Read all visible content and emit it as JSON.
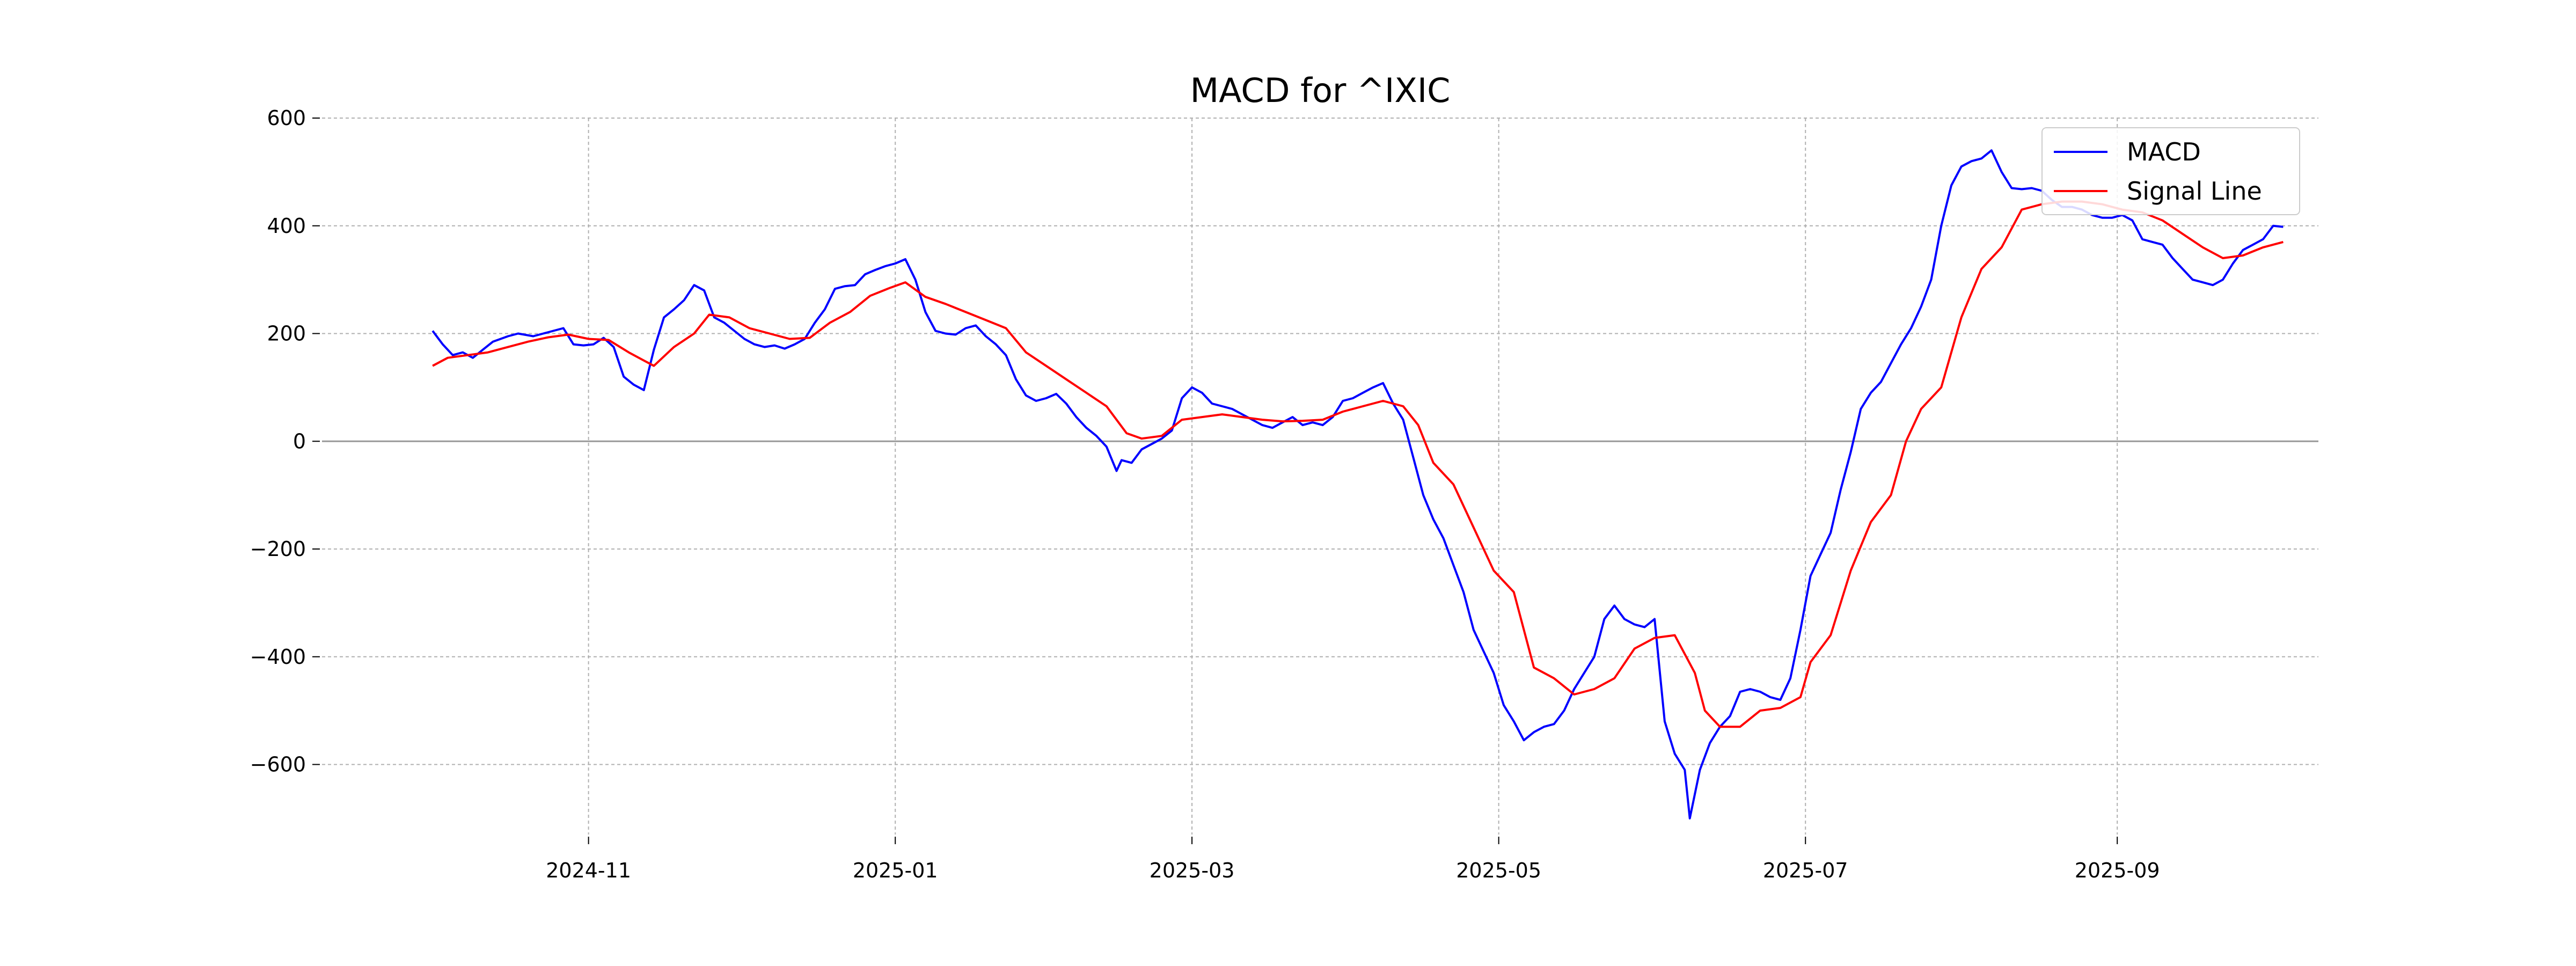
{
  "chart_data": {
    "type": "line",
    "title": "MACD for ^IXIC",
    "xlabel": "",
    "ylabel": "",
    "x_axis": "date",
    "xlim": [
      "2024-09-09",
      "2025-10-11"
    ],
    "ylim": [
      -730,
      600
    ],
    "yticks": [
      600,
      400,
      200,
      0,
      -200,
      -400,
      -600
    ],
    "ytick_labels": [
      "600",
      "400",
      "200",
      "0",
      "−200",
      "−400",
      "−600"
    ],
    "xticks": [
      "2024-11-01",
      "2025-01-01",
      "2025-03-01",
      "2025-05-01",
      "2025-07-01",
      "2025-09-01"
    ],
    "xtick_labels": [
      "2024-11",
      "2025-01",
      "2025-03",
      "2025-05",
      "2025-07",
      "2025-09"
    ],
    "grid": true,
    "zero_line": 0,
    "legend": {
      "position": "top-right"
    },
    "series": [
      {
        "name": "MACD",
        "color": "#0000ff",
        "points": [
          [
            "2024-10-01",
            205
          ],
          [
            "2024-10-03",
            180
          ],
          [
            "2024-10-05",
            160
          ],
          [
            "2024-10-07",
            165
          ],
          [
            "2024-10-09",
            155
          ],
          [
            "2024-10-11",
            170
          ],
          [
            "2024-10-13",
            185
          ],
          [
            "2024-10-16",
            195
          ],
          [
            "2024-10-18",
            200
          ],
          [
            "2024-10-21",
            195
          ],
          [
            "2024-10-23",
            200
          ],
          [
            "2024-10-25",
            205
          ],
          [
            "2024-10-27",
            210
          ],
          [
            "2024-10-29",
            180
          ],
          [
            "2024-10-31",
            178
          ],
          [
            "2024-11-02",
            180
          ],
          [
            "2024-11-04",
            192
          ],
          [
            "2024-11-06",
            175
          ],
          [
            "2024-11-08",
            120
          ],
          [
            "2024-11-10",
            105
          ],
          [
            "2024-11-12",
            95
          ],
          [
            "2024-11-14",
            170
          ],
          [
            "2024-11-16",
            230
          ],
          [
            "2024-11-18",
            245
          ],
          [
            "2024-11-20",
            262
          ],
          [
            "2024-11-22",
            290
          ],
          [
            "2024-11-24",
            280
          ],
          [
            "2024-11-26",
            230
          ],
          [
            "2024-11-28",
            220
          ],
          [
            "2024-11-30",
            205
          ],
          [
            "2024-12-02",
            190
          ],
          [
            "2024-12-04",
            180
          ],
          [
            "2024-12-06",
            175
          ],
          [
            "2024-12-08",
            178
          ],
          [
            "2024-12-10",
            172
          ],
          [
            "2024-12-12",
            180
          ],
          [
            "2024-12-14",
            190
          ],
          [
            "2024-12-16",
            220
          ],
          [
            "2024-12-18",
            245
          ],
          [
            "2024-12-20",
            283
          ],
          [
            "2024-12-22",
            288
          ],
          [
            "2024-12-24",
            290
          ],
          [
            "2024-12-26",
            310
          ],
          [
            "2024-12-28",
            318
          ],
          [
            "2024-12-30",
            325
          ],
          [
            "2025-01-01",
            330
          ],
          [
            "2025-01-03",
            338
          ],
          [
            "2025-01-05",
            300
          ],
          [
            "2025-01-07",
            240
          ],
          [
            "2025-01-09",
            205
          ],
          [
            "2025-01-11",
            200
          ],
          [
            "2025-01-13",
            198
          ],
          [
            "2025-01-15",
            210
          ],
          [
            "2025-01-17",
            215
          ],
          [
            "2025-01-19",
            195
          ],
          [
            "2025-01-21",
            180
          ],
          [
            "2025-01-23",
            160
          ],
          [
            "2025-01-25",
            115
          ],
          [
            "2025-01-27",
            85
          ],
          [
            "2025-01-29",
            75
          ],
          [
            "2025-01-31",
            80
          ],
          [
            "2025-02-02",
            88
          ],
          [
            "2025-02-04",
            70
          ],
          [
            "2025-02-06",
            45
          ],
          [
            "2025-02-08",
            25
          ],
          [
            "2025-02-10",
            10
          ],
          [
            "2025-02-12",
            -10
          ],
          [
            "2025-02-14",
            -55
          ],
          [
            "2025-02-15",
            -35
          ],
          [
            "2025-02-17",
            -40
          ],
          [
            "2025-02-19",
            -15
          ],
          [
            "2025-02-21",
            -5
          ],
          [
            "2025-02-23",
            5
          ],
          [
            "2025-02-25",
            20
          ],
          [
            "2025-02-27",
            80
          ],
          [
            "2025-03-01",
            100
          ],
          [
            "2025-03-03",
            90
          ],
          [
            "2025-03-05",
            70
          ],
          [
            "2025-03-07",
            65
          ],
          [
            "2025-03-09",
            60
          ],
          [
            "2025-03-11",
            50
          ],
          [
            "2025-03-13",
            40
          ],
          [
            "2025-03-15",
            30
          ],
          [
            "2025-03-17",
            25
          ],
          [
            "2025-03-19",
            35
          ],
          [
            "2025-03-21",
            45
          ],
          [
            "2025-03-23",
            30
          ],
          [
            "2025-03-25",
            35
          ],
          [
            "2025-03-27",
            30
          ],
          [
            "2025-03-29",
            45
          ],
          [
            "2025-03-31",
            75
          ],
          [
            "2025-04-02",
            80
          ],
          [
            "2025-04-04",
            90
          ],
          [
            "2025-04-06",
            100
          ],
          [
            "2025-04-08",
            108
          ],
          [
            "2025-04-10",
            70
          ],
          [
            "2025-04-12",
            40
          ],
          [
            "2025-04-14",
            -30
          ],
          [
            "2025-04-16",
            -100
          ],
          [
            "2025-04-18",
            -145
          ],
          [
            "2025-04-20",
            -180
          ],
          [
            "2025-04-22",
            -230
          ],
          [
            "2025-04-24",
            -280
          ],
          [
            "2025-04-26",
            -350
          ],
          [
            "2025-04-28",
            -390
          ],
          [
            "2025-04-30",
            -430
          ],
          [
            "2025-05-02",
            -490
          ],
          [
            "2025-05-04",
            -520
          ],
          [
            "2025-05-06",
            -555
          ],
          [
            "2025-05-08",
            -540
          ],
          [
            "2025-05-10",
            -530
          ],
          [
            "2025-05-12",
            -525
          ],
          [
            "2025-05-14",
            -500
          ],
          [
            "2025-05-16",
            -460
          ],
          [
            "2025-05-18",
            -430
          ],
          [
            "2025-05-20",
            -400
          ],
          [
            "2025-05-22",
            -330
          ],
          [
            "2025-05-24",
            -305
          ],
          [
            "2025-05-26",
            -330
          ],
          [
            "2025-05-28",
            -340
          ],
          [
            "2025-05-30",
            -345
          ],
          [
            "2025-06-01",
            -330
          ],
          [
            "2025-06-03",
            -520
          ],
          [
            "2025-06-05",
            -580
          ],
          [
            "2025-06-07",
            -610
          ],
          [
            "2025-06-08",
            -700
          ],
          [
            "2025-06-10",
            -610
          ],
          [
            "2025-06-12",
            -560
          ],
          [
            "2025-06-14",
            -530
          ],
          [
            "2025-06-16",
            -510
          ],
          [
            "2025-06-18",
            -465
          ],
          [
            "2025-06-20",
            -460
          ],
          [
            "2025-06-22",
            -465
          ],
          [
            "2025-06-24",
            -475
          ],
          [
            "2025-06-26",
            -480
          ],
          [
            "2025-06-28",
            -440
          ],
          [
            "2025-06-30",
            -350
          ],
          [
            "2025-07-02",
            -250
          ],
          [
            "2025-07-04",
            -210
          ],
          [
            "2025-07-06",
            -170
          ],
          [
            "2025-07-08",
            -90
          ],
          [
            "2025-07-10",
            -20
          ],
          [
            "2025-07-12",
            60
          ],
          [
            "2025-07-14",
            90
          ],
          [
            "2025-07-16",
            110
          ],
          [
            "2025-07-18",
            145
          ],
          [
            "2025-07-20",
            180
          ],
          [
            "2025-07-22",
            210
          ],
          [
            "2025-07-24",
            250
          ],
          [
            "2025-07-26",
            300
          ],
          [
            "2025-07-28",
            400
          ],
          [
            "2025-07-30",
            475
          ],
          [
            "2025-08-01",
            510
          ],
          [
            "2025-08-03",
            520
          ],
          [
            "2025-08-05",
            525
          ],
          [
            "2025-08-07",
            540
          ],
          [
            "2025-08-09",
            500
          ],
          [
            "2025-08-11",
            470
          ],
          [
            "2025-08-13",
            468
          ],
          [
            "2025-08-15",
            470
          ],
          [
            "2025-08-17",
            465
          ],
          [
            "2025-08-19",
            448
          ],
          [
            "2025-08-21",
            435
          ],
          [
            "2025-08-23",
            435
          ],
          [
            "2025-08-25",
            430
          ],
          [
            "2025-08-27",
            420
          ],
          [
            "2025-08-29",
            415
          ],
          [
            "2025-08-31",
            415
          ],
          [
            "2025-09-02",
            420
          ],
          [
            "2025-09-04",
            410
          ],
          [
            "2025-09-06",
            375
          ],
          [
            "2025-09-08",
            370
          ],
          [
            "2025-09-10",
            365
          ],
          [
            "2025-09-12",
            340
          ],
          [
            "2025-09-14",
            320
          ],
          [
            "2025-09-16",
            300
          ],
          [
            "2025-09-18",
            295
          ],
          [
            "2025-09-20",
            290
          ],
          [
            "2025-09-22",
            300
          ],
          [
            "2025-09-24",
            330
          ],
          [
            "2025-09-26",
            355
          ],
          [
            "2025-09-28",
            365
          ],
          [
            "2025-09-30",
            375
          ],
          [
            "2025-10-02",
            400
          ],
          [
            "2025-10-04",
            398
          ]
        ]
      },
      {
        "name": "Signal Line",
        "color": "#ff0000",
        "points": [
          [
            "2024-10-01",
            140
          ],
          [
            "2024-10-04",
            155
          ],
          [
            "2024-10-08",
            160
          ],
          [
            "2024-10-12",
            165
          ],
          [
            "2024-10-16",
            175
          ],
          [
            "2024-10-20",
            185
          ],
          [
            "2024-10-24",
            193
          ],
          [
            "2024-10-28",
            198
          ],
          [
            "2024-11-01",
            190
          ],
          [
            "2024-11-05",
            188
          ],
          [
            "2024-11-09",
            165
          ],
          [
            "2024-11-12",
            150
          ],
          [
            "2024-11-14",
            140
          ],
          [
            "2024-11-18",
            175
          ],
          [
            "2024-11-22",
            200
          ],
          [
            "2024-11-25",
            235
          ],
          [
            "2024-11-29",
            230
          ],
          [
            "2024-12-03",
            210
          ],
          [
            "2024-12-07",
            200
          ],
          [
            "2024-12-11",
            190
          ],
          [
            "2024-12-15",
            192
          ],
          [
            "2024-12-19",
            220
          ],
          [
            "2024-12-23",
            240
          ],
          [
            "2024-12-27",
            270
          ],
          [
            "2024-12-31",
            285
          ],
          [
            "2025-01-03",
            295
          ],
          [
            "2025-01-07",
            268
          ],
          [
            "2025-01-11",
            255
          ],
          [
            "2025-01-15",
            240
          ],
          [
            "2025-01-19",
            225
          ],
          [
            "2025-01-23",
            210
          ],
          [
            "2025-01-27",
            165
          ],
          [
            "2025-01-31",
            140
          ],
          [
            "2025-02-04",
            115
          ],
          [
            "2025-02-08",
            90
          ],
          [
            "2025-02-12",
            65
          ],
          [
            "2025-02-16",
            15
          ],
          [
            "2025-02-19",
            5
          ],
          [
            "2025-02-23",
            10
          ],
          [
            "2025-02-27",
            40
          ],
          [
            "2025-03-03",
            45
          ],
          [
            "2025-03-07",
            50
          ],
          [
            "2025-03-11",
            45
          ],
          [
            "2025-03-15",
            40
          ],
          [
            "2025-03-19",
            37
          ],
          [
            "2025-03-23",
            38
          ],
          [
            "2025-03-27",
            40
          ],
          [
            "2025-03-31",
            55
          ],
          [
            "2025-04-04",
            65
          ],
          [
            "2025-04-08",
            75
          ],
          [
            "2025-04-12",
            65
          ],
          [
            "2025-04-15",
            30
          ],
          [
            "2025-04-18",
            -40
          ],
          [
            "2025-04-22",
            -80
          ],
          [
            "2025-04-26",
            -160
          ],
          [
            "2025-04-30",
            -240
          ],
          [
            "2025-05-04",
            -280
          ],
          [
            "2025-05-08",
            -420
          ],
          [
            "2025-05-12",
            -440
          ],
          [
            "2025-05-16",
            -470
          ],
          [
            "2025-05-20",
            -460
          ],
          [
            "2025-05-24",
            -440
          ],
          [
            "2025-05-28",
            -385
          ],
          [
            "2025-06-01",
            -365
          ],
          [
            "2025-06-05",
            -360
          ],
          [
            "2025-06-09",
            -430
          ],
          [
            "2025-06-11",
            -500
          ],
          [
            "2025-06-14",
            -530
          ],
          [
            "2025-06-18",
            -530
          ],
          [
            "2025-06-22",
            -500
          ],
          [
            "2025-06-26",
            -495
          ],
          [
            "2025-06-30",
            -475
          ],
          [
            "2025-07-02",
            -410
          ],
          [
            "2025-07-06",
            -360
          ],
          [
            "2025-07-10",
            -240
          ],
          [
            "2025-07-14",
            -150
          ],
          [
            "2025-07-18",
            -100
          ],
          [
            "2025-07-21",
            0
          ],
          [
            "2025-07-24",
            60
          ],
          [
            "2025-07-28",
            100
          ],
          [
            "2025-08-01",
            230
          ],
          [
            "2025-08-05",
            320
          ],
          [
            "2025-08-09",
            360
          ],
          [
            "2025-08-13",
            430
          ],
          [
            "2025-08-17",
            440
          ],
          [
            "2025-08-21",
            445
          ],
          [
            "2025-08-25",
            445
          ],
          [
            "2025-08-29",
            440
          ],
          [
            "2025-09-02",
            430
          ],
          [
            "2025-09-06",
            425
          ],
          [
            "2025-09-10",
            410
          ],
          [
            "2025-09-14",
            385
          ],
          [
            "2025-09-18",
            360
          ],
          [
            "2025-09-22",
            340
          ],
          [
            "2025-09-26",
            345
          ],
          [
            "2025-09-30",
            360
          ],
          [
            "2025-10-04",
            370
          ]
        ]
      }
    ]
  }
}
